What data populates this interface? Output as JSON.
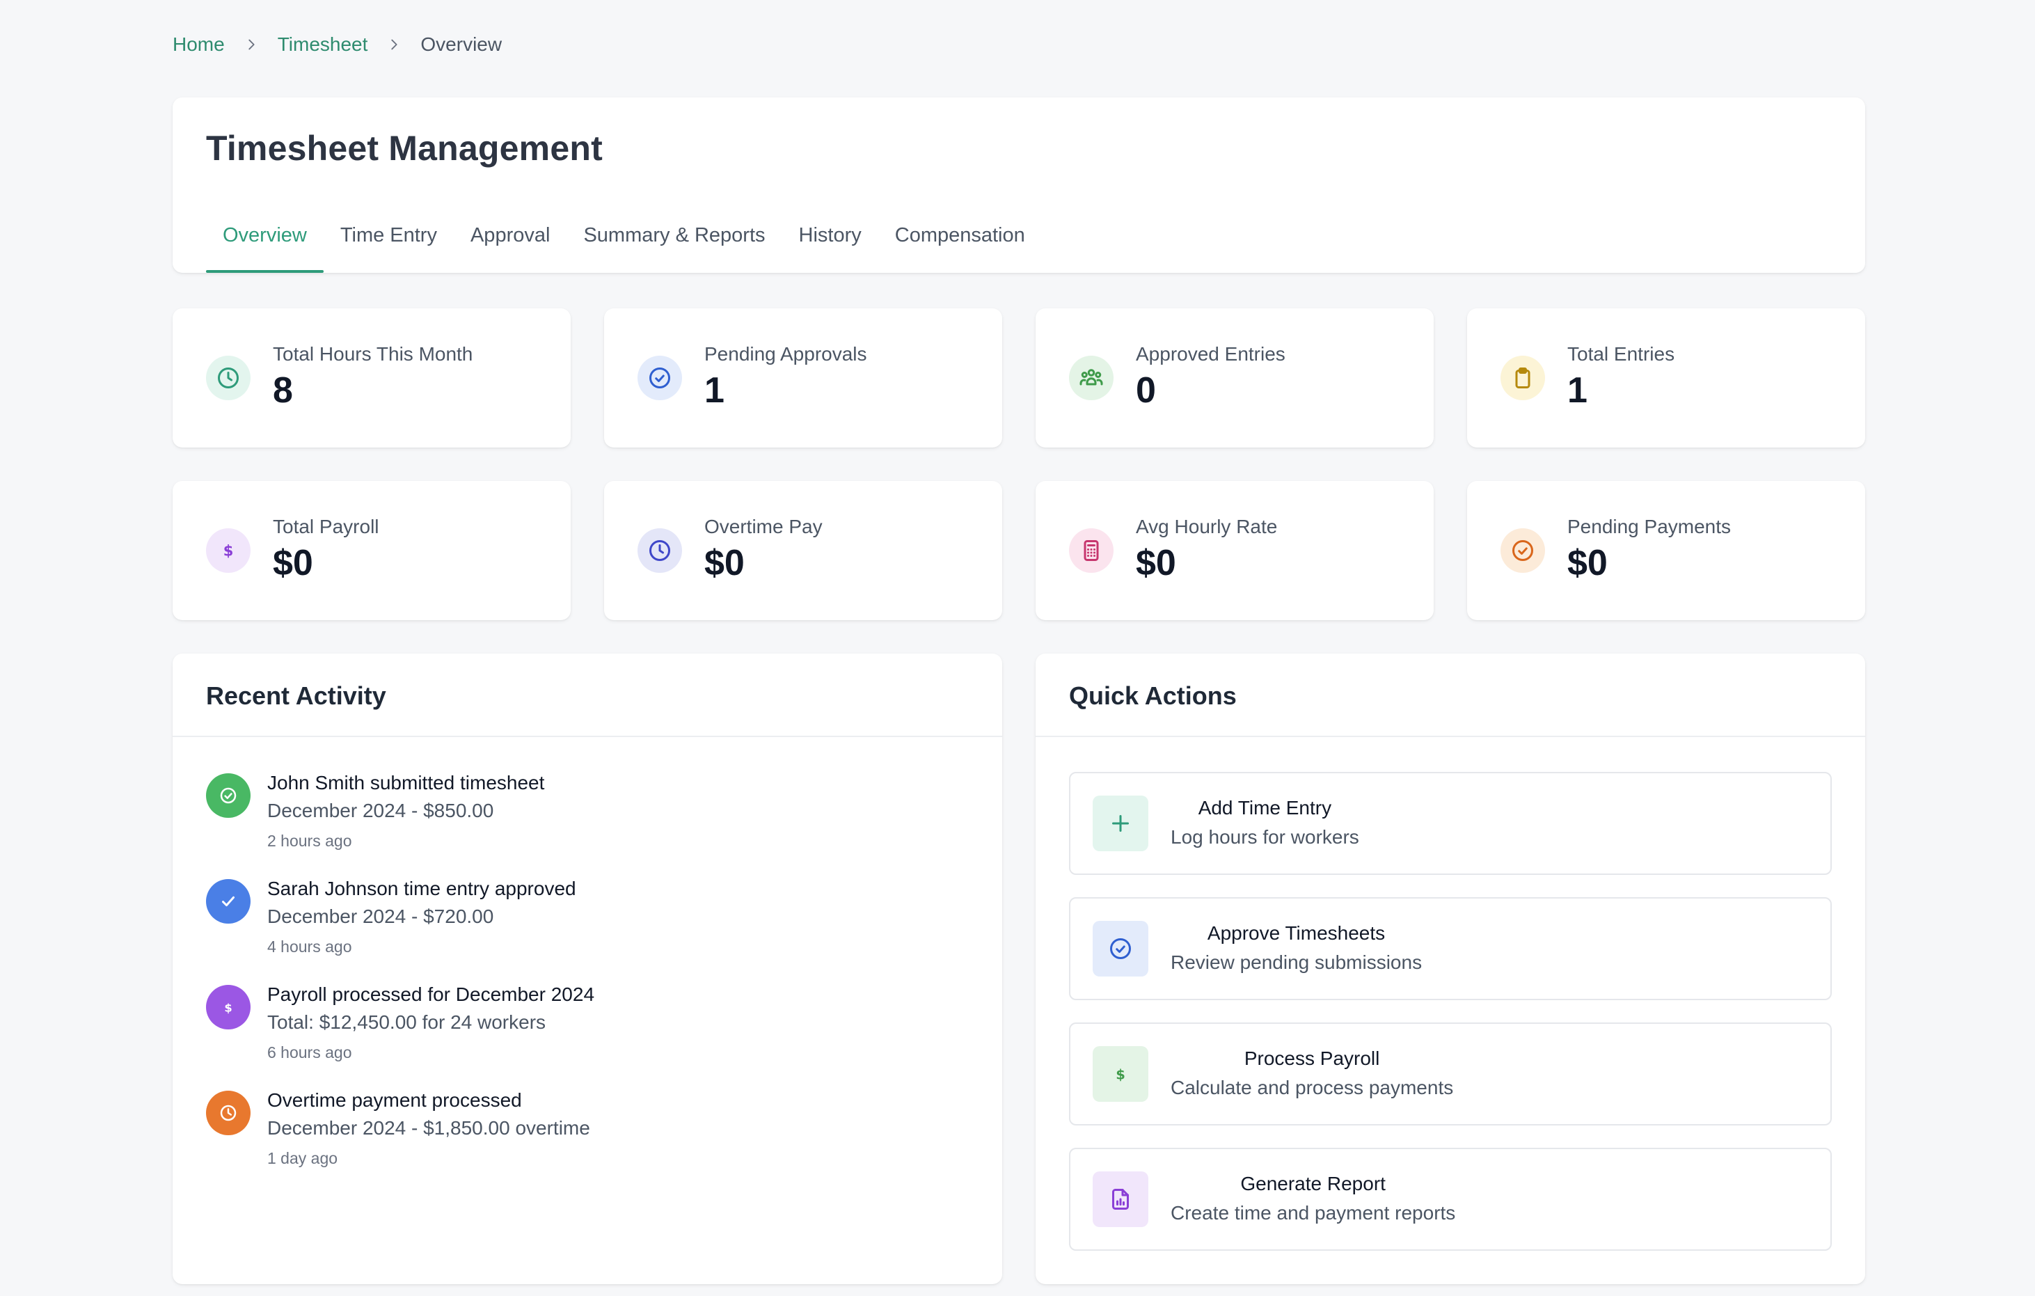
{
  "breadcrumb": {
    "home": "Home",
    "section": "Timesheet",
    "current": "Overview"
  },
  "header": {
    "title": "Timesheet Management",
    "tabs": [
      {
        "label": "Overview",
        "active": true
      },
      {
        "label": "Time Entry",
        "active": false
      },
      {
        "label": "Approval",
        "active": false
      },
      {
        "label": "Summary & Reports",
        "active": false
      },
      {
        "label": "History",
        "active": false
      },
      {
        "label": "Compensation",
        "active": false
      }
    ]
  },
  "stats": [
    {
      "label": "Total Hours This Month",
      "value": "8",
      "icon": "clock-icon",
      "color": "#2e9b7a",
      "bg": "#e3f5ee"
    },
    {
      "label": "Pending Approvals",
      "value": "1",
      "icon": "check-circle-icon",
      "color": "#2f5fd0",
      "bg": "#e3ebfb"
    },
    {
      "label": "Approved Entries",
      "value": "0",
      "icon": "users-icon",
      "color": "#3f9b4a",
      "bg": "#e4f4e6"
    },
    {
      "label": "Total Entries",
      "value": "1",
      "icon": "clipboard-icon",
      "color": "#b5890c",
      "bg": "#fcf4d6"
    },
    {
      "label": "Total Payroll",
      "value": "$0",
      "icon": "dollar-icon",
      "color": "#8a3fd6",
      "bg": "#f1e6fb"
    },
    {
      "label": "Overtime Pay",
      "value": "$0",
      "icon": "clock-icon",
      "color": "#3f47c9",
      "bg": "#e4e6f8"
    },
    {
      "label": "Avg Hourly Rate",
      "value": "$0",
      "icon": "calculator-icon",
      "color": "#c7366e",
      "bg": "#fbe4ee"
    },
    {
      "label": "Pending Payments",
      "value": "$0",
      "icon": "check-circle-icon",
      "color": "#d9661b",
      "bg": "#fcebd9"
    }
  ],
  "recent_activity": {
    "title": "Recent Activity",
    "items": [
      {
        "title": "John Smith submitted timesheet",
        "desc": "December 2024 - $850.00",
        "time": "2 hours ago",
        "icon": "check-circle-icon",
        "color": "#49b864"
      },
      {
        "title": "Sarah Johnson time entry approved",
        "desc": "December 2024 - $720.00",
        "time": "4 hours ago",
        "icon": "check-icon",
        "color": "#4a7fe6"
      },
      {
        "title": "Payroll processed for December 2024",
        "desc": "Total: $12,450.00 for 24 workers",
        "time": "6 hours ago",
        "icon": "dollar-icon",
        "color": "#9b57e4"
      },
      {
        "title": "Overtime payment processed",
        "desc": "December 2024 - $1,850.00 overtime",
        "time": "1 day ago",
        "icon": "clock-icon",
        "color": "#e8782e"
      }
    ]
  },
  "quick_actions": {
    "title": "Quick Actions",
    "items": [
      {
        "title": "Add Time Entry",
        "desc": "Log hours for workers",
        "icon": "plus-icon",
        "color": "#2e9b7a",
        "bg": "#e3f5ee"
      },
      {
        "title": "Approve Timesheets",
        "desc": "Review pending submissions",
        "icon": "check-circle-icon",
        "color": "#2f5fd0",
        "bg": "#e3ebfb"
      },
      {
        "title": "Process Payroll",
        "desc": "Calculate and process payments",
        "icon": "dollar-icon",
        "color": "#3f9b4a",
        "bg": "#e4f4e6"
      },
      {
        "title": "Generate Report",
        "desc": "Create time and payment reports",
        "icon": "report-icon",
        "color": "#8a3fd6",
        "bg": "#f1e6fb"
      }
    ]
  }
}
